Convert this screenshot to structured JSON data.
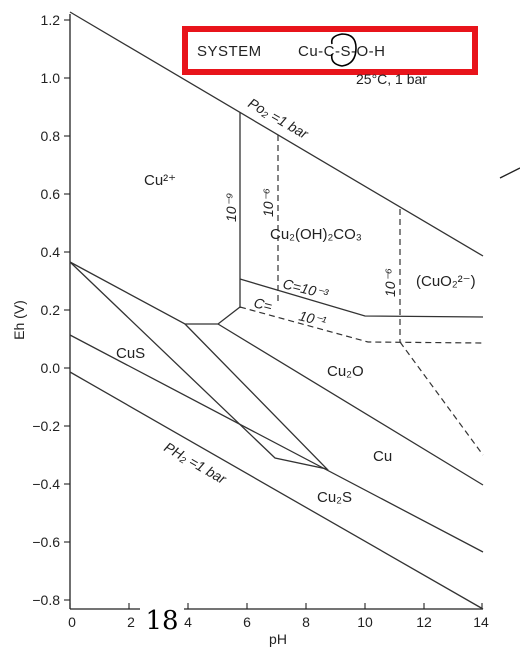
{
  "system_box": {
    "title": "SYSTEM",
    "formula": "Cu-C-S-O-H",
    "conditions": "25°C, 1 bar"
  },
  "axes": {
    "xlabel": "pH",
    "ylabel": "Eh (V)",
    "xlim": [
      0,
      14
    ],
    "ylim": [
      -0.8,
      1.2
    ],
    "x_ticks": [
      "0",
      "2",
      "4",
      "6",
      "8",
      "10",
      "12",
      "14"
    ],
    "y_ticks": [
      "1.2",
      "1.0",
      "0.8",
      "0.6",
      "0.4",
      "0.2",
      "0.0",
      "−0.2",
      "−0.4",
      "−0.6",
      "−0.8"
    ]
  },
  "line_labels": {
    "po2": "Po₂ =1 bar",
    "ph2": "PH₂ =1 bar",
    "act_9": "10⁻⁹",
    "act_6a": "10⁻⁶",
    "act_6b": "10⁻⁶",
    "c3": "C=10⁻³",
    "c1_a": "C=",
    "c1_b": "10⁻¹"
  },
  "regions": {
    "cu2": "Cu²⁺",
    "malachite": "Cu₂(OH)₂CO₃",
    "cuo2": "(CuO₂²⁻)",
    "cus": "CuS",
    "cu2o": "Cu₂O",
    "cu": "Cu",
    "cu2s": "Cu₂S"
  },
  "page_number": "18",
  "colors": {
    "highlight_box": "#e8141b",
    "ink": "#222222"
  }
}
